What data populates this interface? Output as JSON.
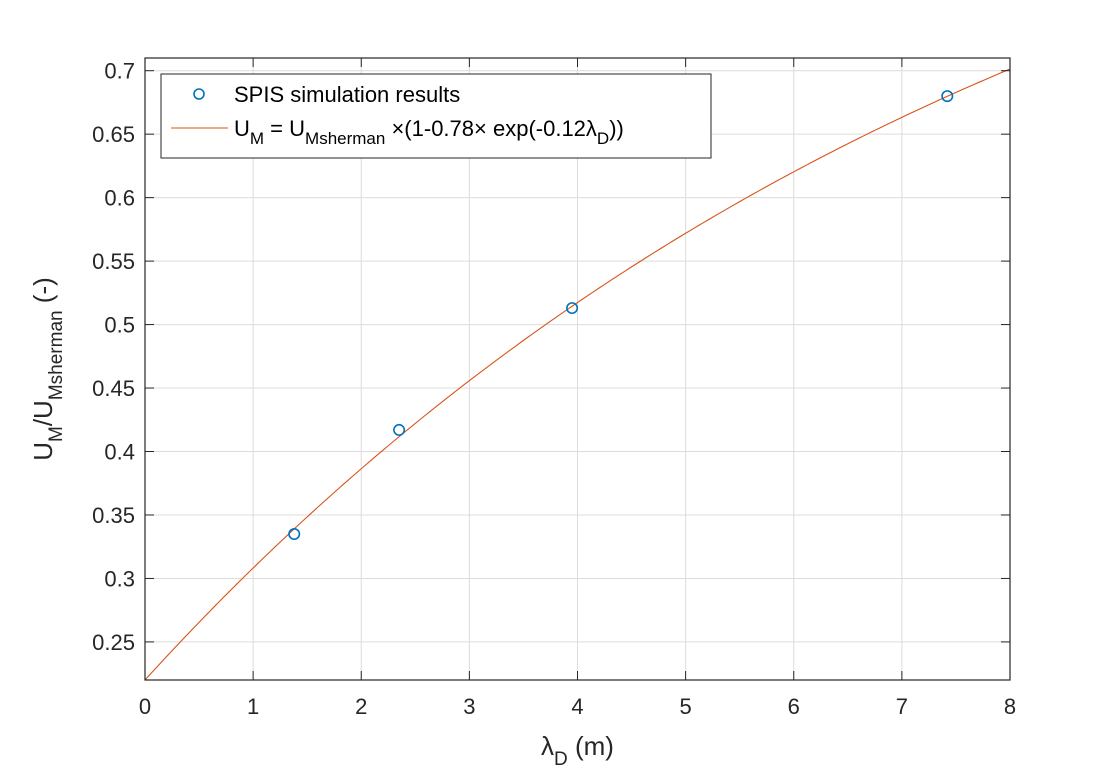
{
  "chart_data": {
    "type": "scatter",
    "xlabel": {
      "symbol": "λ",
      "sub": "D",
      "rest": " (m)"
    },
    "ylabel": {
      "a": "U",
      "a_sub": "M",
      "slash": "/U",
      "b_sub": "Msherman",
      "rest": " (-)"
    },
    "xlim": [
      0,
      8
    ],
    "ylim": [
      0.22,
      0.71
    ],
    "xticks": [
      0,
      1,
      2,
      3,
      4,
      5,
      6,
      7,
      8
    ],
    "xtick_labels": [
      "0",
      "1",
      "2",
      "3",
      "4",
      "5",
      "6",
      "7",
      "8"
    ],
    "yticks": [
      0.25,
      0.3,
      0.35,
      0.4,
      0.45,
      0.5,
      0.55,
      0.6,
      0.65,
      0.7
    ],
    "ytick_labels": [
      "0.25",
      "0.3",
      "0.35",
      "0.4",
      "0.45",
      "0.5",
      "0.55",
      "0.6",
      "0.65",
      "0.7"
    ],
    "grid": true,
    "legend_position": "top-left",
    "series": [
      {
        "kind": "markers",
        "color": "#0072BD",
        "x": [
          1.38,
          2.35,
          3.95,
          7.42
        ],
        "y": [
          0.335,
          0.417,
          0.513,
          0.68
        ]
      },
      {
        "kind": "line",
        "color": "#D95319",
        "model": {
          "amplitude": 0.78,
          "rate": 0.12
        }
      }
    ],
    "legend": {
      "marker_entry": "SPIS simulation results",
      "line_entry": {
        "p1": "U",
        "p1_sub": "M",
        "p2": " = U",
        "p2_sub": "Msherman",
        "p3": " ×(1-0.78× exp(-0.12",
        "p3_sym": "λ",
        "p3_sub": "D",
        "p4": "))"
      }
    }
  }
}
